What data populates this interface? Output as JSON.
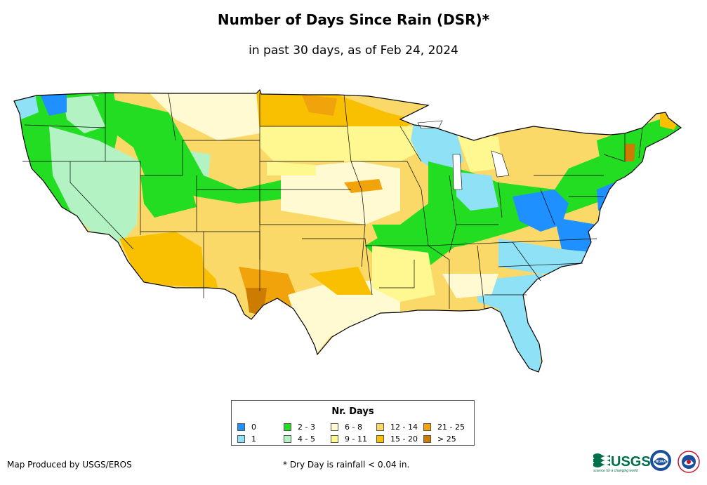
{
  "title": "Number of Days Since Rain (DSR)*",
  "subtitle": "in past 30 days, as of Feb 24, 2024",
  "legend": {
    "title": "Nr. Days",
    "items": [
      {
        "label": "0",
        "color": "#1e90ff"
      },
      {
        "label": "1",
        "color": "#8fe1f5"
      },
      {
        "label": "2 - 3",
        "color": "#22dd22"
      },
      {
        "label": "4 - 5",
        "color": "#b3f3c3"
      },
      {
        "label": "6 - 8",
        "color": "#fffad2"
      },
      {
        "label": "9 - 11",
        "color": "#fff78f"
      },
      {
        "label": "12 - 14",
        "color": "#fbd968"
      },
      {
        "label": "15 - 20",
        "color": "#f8c000"
      },
      {
        "label": "21 - 25",
        "color": "#f0a30a"
      },
      {
        "label": "> 25",
        "color": "#cc7c00"
      }
    ]
  },
  "credit": "Map Produced by USGS/EROS",
  "footnote": "* Dry Day is rainfall < 0.04 in.",
  "logos": {
    "usgs": "USGS",
    "usgs_tagline": "science for a changing world",
    "noaa": "NOAA"
  }
}
